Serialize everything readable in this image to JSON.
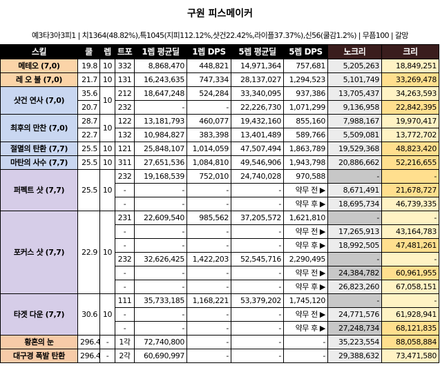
{
  "title": "구원 피스메이커",
  "stats": "예3타3아3피1 | 치1364(48.82%),특1045(지피112.12%,샷건22.42%,라이플37.37%),신56(쿨감1.2%) | 무픔100 | 갈망",
  "headers": [
    "스킬",
    "쿨",
    "렙",
    "트포",
    "1렙 평균딜",
    "1렙 DPS",
    "5렙 평균딜",
    "5렙 DPS",
    "노크리",
    "크리"
  ],
  "rows": [
    {
      "skill": "메테오 (7,0)",
      "cool": "19.8",
      "lv": "10",
      "tripod": "332",
      "avg1": "8,868,470",
      "dps1": "448,821",
      "avg5": "14,971,364",
      "dps5": "757,681",
      "nocrit": "5,205,263",
      "crit": "18,849,251"
    },
    {
      "skill": "레 오 불 (7,0)",
      "cool": "21.7",
      "lv": "10",
      "tripod": "131",
      "avg1": "16,243,635",
      "dps1": "747,334",
      "avg5": "28,137,027",
      "dps5": "1,294,523",
      "nocrit": "5,101,749",
      "crit": "33,269,478"
    },
    {
      "skill": "샷건 연사 (7,0)",
      "cool": "35.6",
      "lv": "10",
      "tripod": "212",
      "avg1": "18,647,248",
      "dps1": "524,284",
      "avg5": "33,340,095",
      "dps5": "937,386",
      "nocrit": "13,705,437",
      "crit": "34,263,593"
    },
    {
      "skill": "",
      "cool": "20.7",
      "lv": "",
      "tripod": "232",
      "avg1": "-",
      "dps1": "-",
      "avg5": "22,226,730",
      "dps5": "1,071,299",
      "nocrit": "9,136,958",
      "crit": "22,842,395"
    },
    {
      "skill": "최후의 만찬 (7,0)",
      "cool": "28.7",
      "lv": "10",
      "tripod": "122",
      "avg1": "13,181,793",
      "dps1": "460,077",
      "avg5": "19,432,160",
      "dps5": "855,160",
      "nocrit": "7,988,167",
      "crit": "19,970,417"
    },
    {
      "skill": "",
      "cool": "22.7",
      "lv": "",
      "tripod": "132",
      "avg1": "10,984,827",
      "dps1": "383,398",
      "avg5": "13,401,489",
      "dps5": "589,766",
      "nocrit": "5,509,081",
      "crit": "13,772,702"
    },
    {
      "skill": "절멸의 탄환 (7,7)",
      "cool": "25.5",
      "lv": "10",
      "tripod": "121",
      "avg1": "25,848,107",
      "dps1": "1,014,059",
      "avg5": "47,507,494",
      "dps5": "1,863,789",
      "nocrit": "19,529,368",
      "crit": "48,823,420"
    },
    {
      "skill": "마탄의 사수 (7,7)",
      "cool": "25.5",
      "lv": "10",
      "tripod": "311",
      "avg1": "27,651,536",
      "dps1": "1,084,810",
      "avg5": "49,546,906",
      "dps5": "1,943,798",
      "nocrit": "20,886,662",
      "crit": "52,216,655"
    },
    {
      "skill": "퍼펙트 샷 (7,7)",
      "cool": "25.5",
      "lv": "10",
      "tripod": "232",
      "avg1": "19,168,539",
      "dps1": "752,010",
      "avg5": "24,740,028",
      "dps5": "970,588",
      "nocrit": "-",
      "crit": "-"
    },
    {
      "skill": "",
      "cool": "",
      "lv": "",
      "tripod": "-",
      "avg1": "-",
      "dps1": "-",
      "avg5": "-",
      "dps5": "약무 전 ▶",
      "nocrit": "8,671,491",
      "crit": "21,678,727"
    },
    {
      "skill": "",
      "cool": "",
      "lv": "",
      "tripod": "-",
      "avg1": "-",
      "dps1": "-",
      "avg5": "-",
      "dps5": "약무 후 ▶",
      "nocrit": "18,695,734",
      "crit": "46,739,335"
    },
    {
      "skill": "포커스 샷 (7,7)",
      "cool": "22.9",
      "lv": "10",
      "tripod": "231",
      "avg1": "22,609,540",
      "dps1": "985,562",
      "avg5": "37,205,572",
      "dps5": "1,621,810",
      "nocrit": "-",
      "crit": "-"
    },
    {
      "skill": "",
      "cool": "",
      "lv": "",
      "tripod": "-",
      "avg1": "-",
      "dps1": "-",
      "avg5": "-",
      "dps5": "약무 전 ▶",
      "nocrit": "17,265,913",
      "crit": "43,164,783"
    },
    {
      "skill": "",
      "cool": "",
      "lv": "",
      "tripod": "-",
      "avg1": "-",
      "dps1": "-",
      "avg5": "-",
      "dps5": "약무 후 ▶",
      "nocrit": "18,992,505",
      "crit": "47,481,261"
    },
    {
      "skill": "",
      "cool": "",
      "lv": "",
      "tripod": "232",
      "avg1": "32,626,425",
      "dps1": "1,422,203",
      "avg5": "52,545,716",
      "dps5": "2,290,495",
      "nocrit": "-",
      "crit": "-"
    },
    {
      "skill": "",
      "cool": "",
      "lv": "",
      "tripod": "-",
      "avg1": "-",
      "dps1": "-",
      "avg5": "-",
      "dps5": "약무 전 ▶",
      "nocrit": "24,384,782",
      "crit": "60,961,955"
    },
    {
      "skill": "",
      "cool": "",
      "lv": "",
      "tripod": "-",
      "avg1": "-",
      "dps1": "-",
      "avg5": "-",
      "dps5": "약무 후 ▶",
      "nocrit": "26,823,260",
      "crit": "67,058,151"
    },
    {
      "skill": "타겟 다운 (7,7)",
      "cool": "30.6",
      "lv": "10",
      "tripod": "111",
      "avg1": "35,733,185",
      "dps1": "1,168,221",
      "avg5": "53,379,202",
      "dps5": "1,745,120",
      "nocrit": "-",
      "crit": "-"
    },
    {
      "skill": "",
      "cool": "",
      "lv": "",
      "tripod": "-",
      "avg1": "-",
      "dps1": "-",
      "avg5": "-",
      "dps5": "약무 전 ▶",
      "nocrit": "24,771,576",
      "crit": "61,928,941"
    },
    {
      "skill": "",
      "cool": "",
      "lv": "",
      "tripod": "-",
      "avg1": "-",
      "dps1": "-",
      "avg5": "-",
      "dps5": "약무 후 ▶",
      "nocrit": "27,248,734",
      "crit": "68,121,835"
    },
    {
      "skill": "황혼의 눈",
      "cool": "296.4",
      "lv": "-",
      "tripod": "1각",
      "avg1": "72,740,800",
      "dps1": "-",
      "avg5": "-",
      "dps5": "-",
      "nocrit": "35,223,554",
      "crit": "88,058,884"
    },
    {
      "skill": "대구경 폭발 탄환",
      "cool": "296.4",
      "lv": "-",
      "tripod": "2각",
      "avg1": "60,690,997",
      "dps1": "-",
      "avg5": "-",
      "dps5": "-",
      "nocrit": "29,388,632",
      "crit": "73,471,580"
    }
  ],
  "colors": {
    "meteor_orange": "#fbd4a8",
    "blue_group": "#c9d7f1",
    "purple_group": "#d6cde8",
    "peach_group": "#f7cba8",
    "nocrit_gray": "#ececec",
    "crit_yellow": "#fff3c4"
  }
}
